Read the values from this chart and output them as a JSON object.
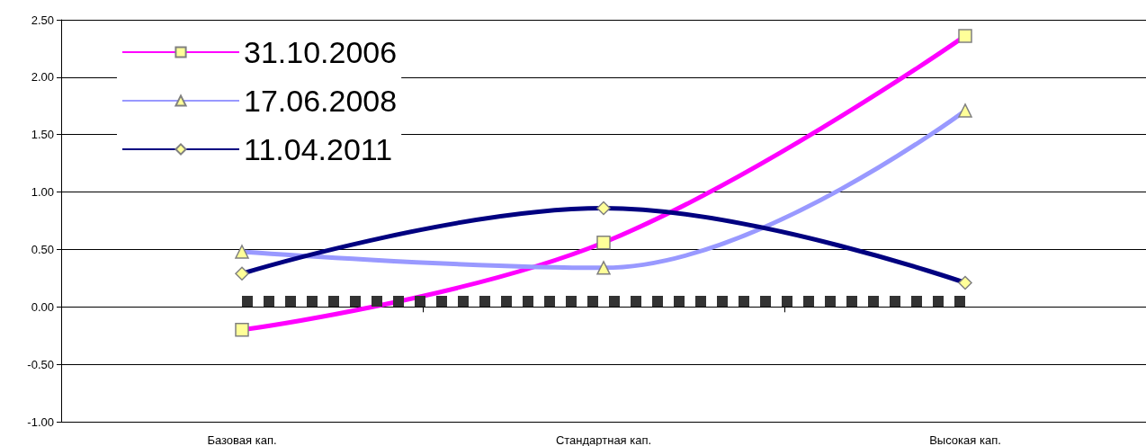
{
  "chart_data": {
    "type": "line",
    "categories": [
      "Базовая кап.",
      "Стандартная кап.",
      "Высокая кап."
    ],
    "series": [
      {
        "name": "31.10.2006",
        "color": "#ff00ff",
        "marker": "square",
        "values": [
          -0.2,
          0.56,
          2.36
        ]
      },
      {
        "name": "17.06.2008",
        "color": "#9999ff",
        "marker": "triangle",
        "values": [
          0.48,
          0.34,
          1.71
        ]
      },
      {
        "name": "11.04.2011",
        "color": "#000080",
        "marker": "diamond",
        "values": [
          0.29,
          0.86,
          0.21
        ]
      }
    ],
    "ylim": [
      -1,
      2.5
    ],
    "yticks": [
      {
        "value": -1,
        "label": "-1.00"
      },
      {
        "value": -0.5,
        "label": "-0.50"
      },
      {
        "value": 0,
        "label": "0.00"
      },
      {
        "value": 0.5,
        "label": "0.50"
      },
      {
        "value": 1,
        "label": "1.00"
      },
      {
        "value": 1.5,
        "label": "1.50"
      },
      {
        "value": 2,
        "label": "2.00"
      },
      {
        "value": 2.5,
        "label": "2.50"
      }
    ],
    "ref_lines": [
      {
        "axis": "y",
        "value": 0.05,
        "color": "#333333",
        "line_style": "dotted"
      }
    ],
    "grid": "y",
    "legend": "top left"
  }
}
